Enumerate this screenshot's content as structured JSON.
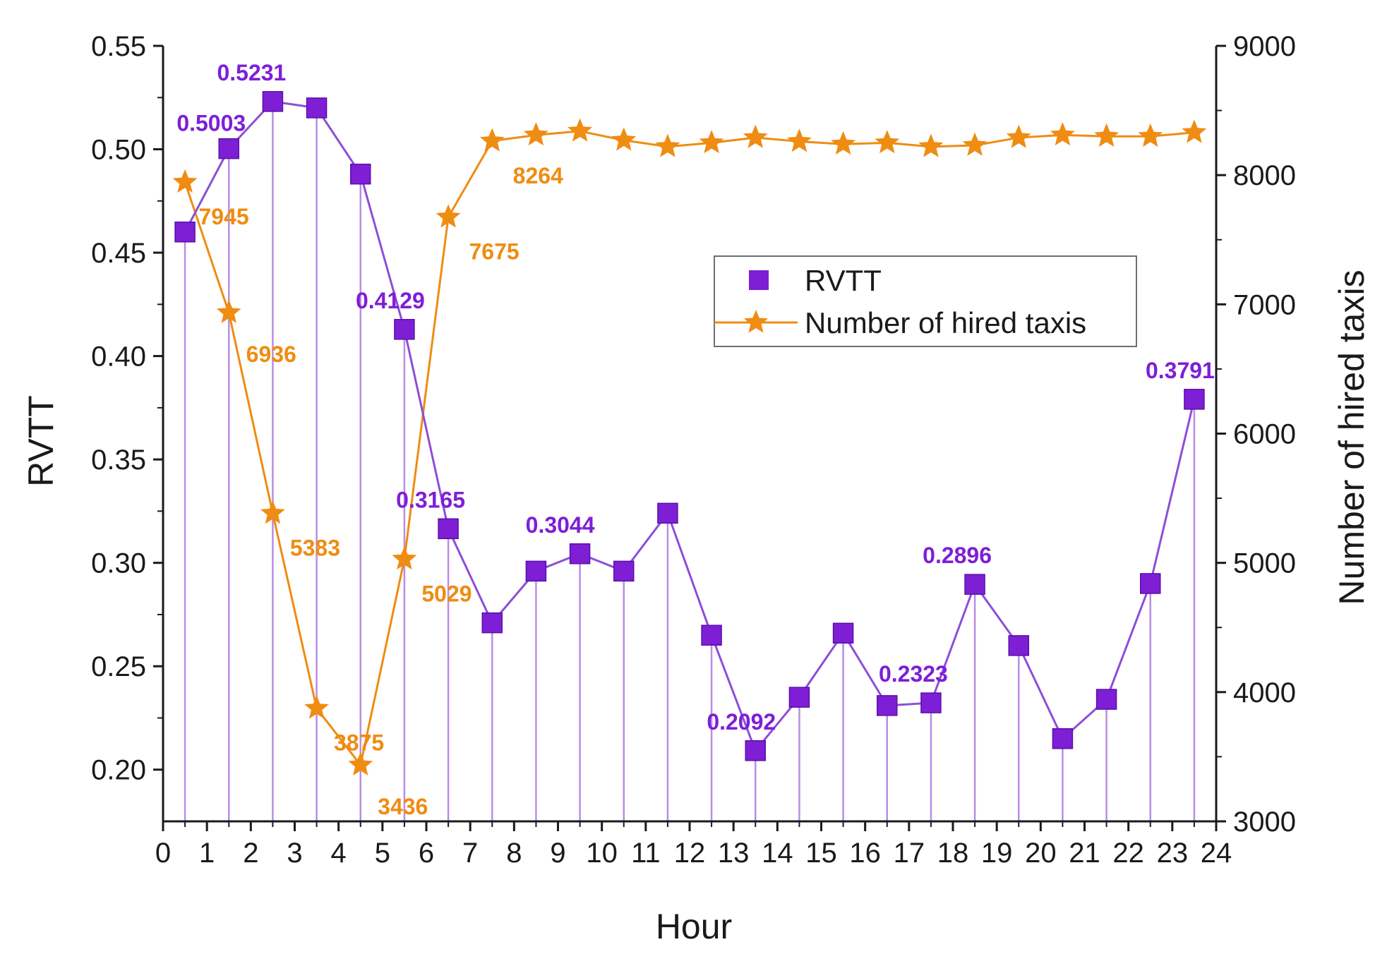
{
  "chart_data": {
    "type": "line",
    "xlabel": "Hour",
    "ylabel_left": "RVTT",
    "ylabel_right": "Number of hired taxis",
    "xlim": [
      0,
      24
    ],
    "ylim_left": [
      0.175,
      0.55
    ],
    "ylim_right": [
      3000,
      9000
    ],
    "x_ticks": [
      0,
      1,
      2,
      3,
      4,
      5,
      6,
      7,
      8,
      9,
      10,
      11,
      12,
      13,
      14,
      15,
      16,
      17,
      18,
      19,
      20,
      21,
      22,
      23,
      24
    ],
    "y_left_ticks": [
      "0.20",
      "0.25",
      "0.30",
      "0.35",
      "0.40",
      "0.45",
      "0.50",
      "0.55"
    ],
    "y_right_ticks": [
      "3000",
      "4000",
      "5000",
      "6000",
      "7000",
      "8000",
      "9000"
    ],
    "colors": {
      "rvtt": "#7e1fd6",
      "rvtt_line": "#8c4fd8",
      "drop_line": "#b98de6",
      "taxis": "#ef8c12",
      "axis": "#1a1a1a"
    },
    "legend": {
      "position": "upper-center-right",
      "entries": [
        "RVTT",
        "Number of hired taxis"
      ]
    },
    "series": [
      {
        "name": "RVTT",
        "axis": "left",
        "marker": "square",
        "x": [
          0.5,
          1.5,
          2.5,
          3.5,
          4.5,
          5.5,
          6.5,
          7.5,
          8.5,
          9.5,
          10.5,
          11.5,
          12.5,
          13.5,
          14.5,
          15.5,
          16.5,
          17.5,
          18.5,
          19.5,
          20.5,
          21.5,
          22.5,
          23.5
        ],
        "values": [
          0.46,
          0.5003,
          0.5231,
          0.52,
          0.488,
          0.4129,
          0.3165,
          0.271,
          0.296,
          0.3044,
          0.296,
          0.324,
          0.265,
          0.2092,
          0.235,
          0.266,
          0.231,
          0.2323,
          0.2896,
          0.26,
          0.215,
          0.234,
          0.29,
          0.3791
        ]
      },
      {
        "name": "Number of hired taxis",
        "axis": "right",
        "marker": "star",
        "x": [
          0.5,
          1.5,
          2.5,
          3.5,
          4.5,
          5.5,
          6.5,
          7.5,
          8.5,
          9.5,
          10.5,
          11.5,
          12.5,
          13.5,
          14.5,
          15.5,
          16.5,
          17.5,
          18.5,
          19.5,
          20.5,
          21.5,
          22.5,
          23.5
        ],
        "values": [
          7945,
          6936,
          5383,
          3875,
          3436,
          5029,
          7675,
          8264,
          8310,
          8340,
          8270,
          8220,
          8250,
          8290,
          8260,
          8240,
          8250,
          8220,
          8230,
          8290,
          8310,
          8300,
          8300,
          8330
        ]
      }
    ],
    "annotations_rvtt": [
      {
        "text": "0.5003",
        "x": 1.5,
        "y": 0.5003
      },
      {
        "text": "0.5231",
        "x": 2.5,
        "y": 0.5231
      },
      {
        "text": "0.4129",
        "x": 5.5,
        "y": 0.4129
      },
      {
        "text": "0.3165",
        "x": 6.5,
        "y": 0.3165
      },
      {
        "text": "0.3044",
        "x": 9.5,
        "y": 0.3044
      },
      {
        "text": "0.2092",
        "x": 13.5,
        "y": 0.2092
      },
      {
        "text": "0.2323",
        "x": 17.5,
        "y": 0.2323
      },
      {
        "text": "0.2896",
        "x": 18.5,
        "y": 0.2896
      },
      {
        "text": "0.3791",
        "x": 23.5,
        "y": 0.3791
      }
    ],
    "annotations_taxis": [
      {
        "text": "7945",
        "x": 0.5,
        "y": 7945
      },
      {
        "text": "6936",
        "x": 1.5,
        "y": 6936
      },
      {
        "text": "5383",
        "x": 2.5,
        "y": 5383
      },
      {
        "text": "3875",
        "x": 3.5,
        "y": 3875
      },
      {
        "text": "3436",
        "x": 4.5,
        "y": 3436
      },
      {
        "text": "5029",
        "x": 5.5,
        "y": 5029
      },
      {
        "text": "7675",
        "x": 6.5,
        "y": 7675
      },
      {
        "text": "8264",
        "x": 7.5,
        "y": 8264
      }
    ]
  }
}
